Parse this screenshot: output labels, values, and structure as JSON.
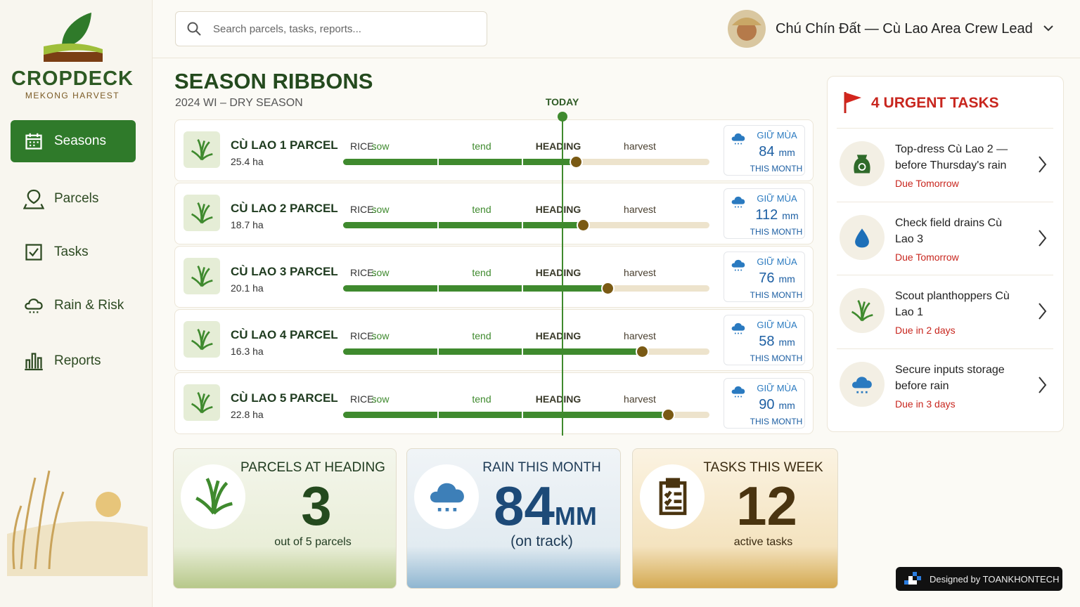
{
  "brand": {
    "name": "CROPDECK",
    "tagline": "MEKONG HARVEST"
  },
  "nav": [
    {
      "label": "Seasons",
      "active": true
    },
    {
      "label": "Parcels",
      "active": false
    },
    {
      "label": "Tasks",
      "active": false
    },
    {
      "label": "Rain & Risk",
      "active": false
    },
    {
      "label": "Reports",
      "active": false
    }
  ],
  "search": {
    "placeholder": "Search parcels, tasks, reports..."
  },
  "user": {
    "name": "Chú Chín Đất — Cù Lao Area Crew Lead"
  },
  "season": {
    "title": "SEASON RIBBONS",
    "subtitle": "2024 WI – DRY SEASON",
    "today_label": "TODAY",
    "today": 60,
    "crop_label": "RICE:",
    "stages": [
      "sow",
      "tend",
      "HEADING",
      "harvest"
    ],
    "rain_label": "GIỮ MÙA",
    "rain_unit": "mm",
    "rain_period": "THIS MONTH",
    "parcels": [
      {
        "name": "CÙ LAO 1 PARCEL",
        "area": "25.4 ha",
        "progress": 63.5,
        "rain": 84
      },
      {
        "name": "CÙ LAO 2 PARCEL",
        "area": "18.7 ha",
        "progress": 65.4,
        "rain": 112
      },
      {
        "name": "CÙ LAO 3 PARCEL",
        "area": "20.1 ha",
        "progress": 72.2,
        "rain": 76
      },
      {
        "name": "CÙ LAO 4 PARCEL",
        "area": "16.3 ha",
        "progress": 81.6,
        "rain": 58
      },
      {
        "name": "CÙ LAO 5 PARCEL",
        "area": "22.8 ha",
        "progress": 88.7,
        "rain": 90
      }
    ]
  },
  "stats": [
    {
      "title": "PARCELS AT HEADING",
      "value": 3,
      "note": "out of 5 parcels"
    },
    {
      "title": "RAIN THIS MONTH",
      "value": 84,
      "unit": "MM",
      "note": "(on track)"
    },
    {
      "title": "TASKS THIS WEEK",
      "value": 12,
      "note": "active tasks"
    }
  ],
  "urgent": {
    "count": 4,
    "title": "URGENT TASKS",
    "tasks": [
      {
        "title": "Top-dress Cù Lao 2 — before Thursday's rain",
        "due": "Due Tomorrow"
      },
      {
        "title": "Check field drains Cù Lao 3",
        "due": "Due Tomorrow"
      },
      {
        "title": "Scout planthoppers Cù Lao 1",
        "due": "Due in 2 days"
      },
      {
        "title": "Secure inputs storage before rain",
        "due": "Due in 3 days"
      }
    ]
  },
  "credit": "Designed by TOANKHONTECH"
}
